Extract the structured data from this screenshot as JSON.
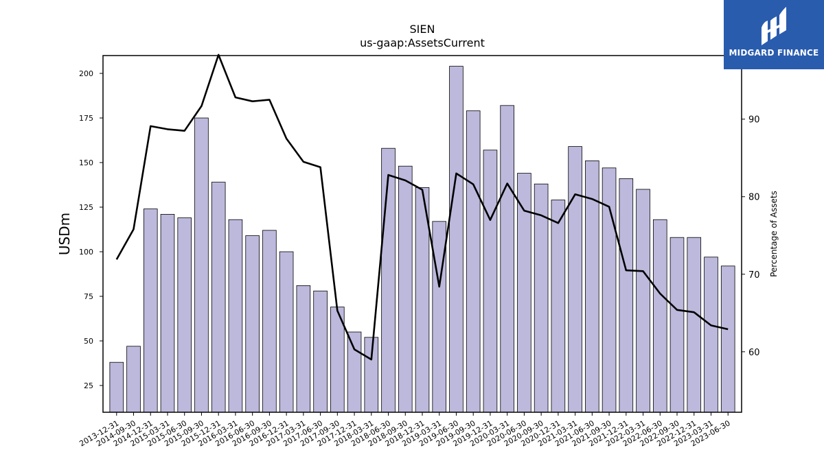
{
  "chart_data": {
    "type": "bar",
    "title": "SIEN",
    "subtitle": "us-gaap:AssetsCurrent",
    "ylabel": "USDm",
    "y2label": "Percentage of Assets",
    "ylim": [
      10,
      210
    ],
    "y2lim": [
      52.2,
      98.2
    ],
    "yticks": [
      25,
      50,
      75,
      100,
      125,
      150,
      175,
      200
    ],
    "y2ticks": [
      60,
      70,
      80,
      90
    ],
    "bar_color": "#bcb9dc",
    "line_color": "#000000",
    "categories": [
      "2013-12-31",
      "2014-09-30",
      "2014-12-31",
      "2015-03-31",
      "2015-06-30",
      "2015-09-30",
      "2015-12-31",
      "2016-03-31",
      "2016-06-30",
      "2016-09-30",
      "2016-12-31",
      "2017-03-31",
      "2017-06-30",
      "2017-09-30",
      "2017-12-31",
      "2018-03-31",
      "2018-06-30",
      "2018-09-30",
      "2018-12-31",
      "2019-03-31",
      "2019-06-30",
      "2019-09-30",
      "2019-12-31",
      "2020-03-31",
      "2020-06-30",
      "2020-09-30",
      "2020-12-31",
      "2021-03-31",
      "2021-06-30",
      "2021-09-30",
      "2021-12-31",
      "2022-03-31",
      "2022-06-30",
      "2022-09-30",
      "2022-12-31",
      "2023-03-31",
      "2023-06-30"
    ],
    "series": [
      {
        "values": [
          38,
          47,
          124,
          121,
          119,
          175,
          139,
          118,
          109,
          112,
          100,
          81,
          78,
          69,
          55,
          52,
          158,
          148,
          136,
          117,
          204,
          179,
          157,
          182,
          144,
          138,
          129,
          159,
          151,
          147,
          141,
          135,
          118,
          108,
          108,
          97,
          92
        ]
      },
      {
        "values": [
          71.9,
          75.8,
          89.1,
          88.7,
          88.5,
          91.7,
          98.3,
          92.8,
          92.3,
          92.5,
          87.5,
          84.5,
          83.8,
          65.3,
          60.3,
          59.0,
          82.8,
          82.1,
          80.9,
          68.4,
          83.0,
          81.6,
          77.0,
          81.7,
          78.2,
          77.6,
          76.6,
          80.3,
          79.7,
          78.7,
          70.5,
          70.4,
          67.5,
          65.4,
          65.1,
          63.4,
          62.9
        ]
      }
    ]
  },
  "logo": {
    "text": "MIDGARD FINANCE"
  }
}
